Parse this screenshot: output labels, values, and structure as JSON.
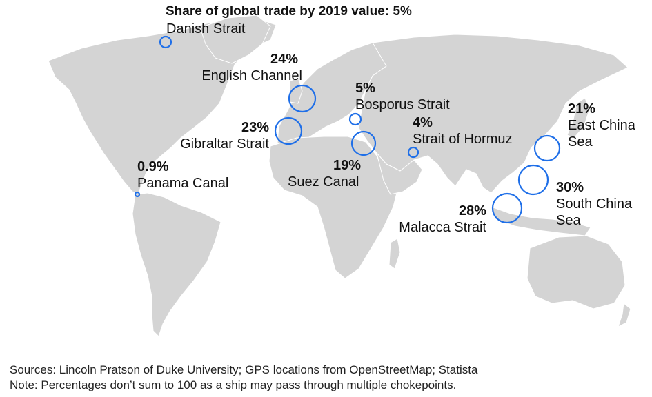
{
  "title": "Share of global trade by 2019 value: 5%",
  "accent_color": "#1f6fe8",
  "land_color": "#d4d4d4",
  "chokepoints": [
    {
      "name": "Danish Strait",
      "pct": "",
      "share": 5
    },
    {
      "name": "English Channel",
      "pct": "24%",
      "share": 24
    },
    {
      "name": "Bosporus Strait",
      "pct": "5%",
      "share": 5
    },
    {
      "name": "Gibraltar Strait",
      "pct": "23%",
      "share": 23
    },
    {
      "name": "Strait of Hormuz",
      "pct": "4%",
      "share": 4
    },
    {
      "name": "Suez Canal",
      "pct": "19%",
      "share": 19
    },
    {
      "name": "Panama Canal",
      "pct": "0.9%",
      "share": 0.9
    },
    {
      "name": "East China Sea",
      "name_lines": [
        "East China",
        "Sea"
      ],
      "pct": "21%",
      "share": 21
    },
    {
      "name": "South China Sea",
      "name_lines": [
        "South China",
        "Sea"
      ],
      "pct": "30%",
      "share": 30
    },
    {
      "name": "Malacca Strait",
      "pct": "28%",
      "share": 28
    }
  ],
  "footer": {
    "sources": "Sources: Lincoln Pratson of Duke University; GPS locations from OpenStreetMap; Statista",
    "note": "Note: Percentages don’t sum to 100 as a ship may pass through multiple chokepoints."
  }
}
